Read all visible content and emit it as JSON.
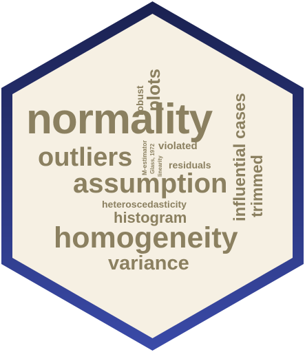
{
  "sticker": {
    "border_color_top": "#1a2150",
    "border_color_bottom": "#3a4aa8",
    "fill_color": "#f6f0e3",
    "word_color": "#8b8060"
  },
  "words": {
    "normality": "normality",
    "outliers": "outliers",
    "assumption": "assumption",
    "homogeneity": "homogeneity",
    "variance": "variance",
    "histogram": "histogram",
    "heteroscedasticity": "heteroscedasticity",
    "violated": "violated",
    "residuals": "residuals",
    "robust": "robust",
    "plots": "plots",
    "influential_cases": "influential cases",
    "trimmed": "trimmed",
    "m_estimator": "M-estimator",
    "glass_1972": "Glass, 1972",
    "linearity": "linearity"
  }
}
